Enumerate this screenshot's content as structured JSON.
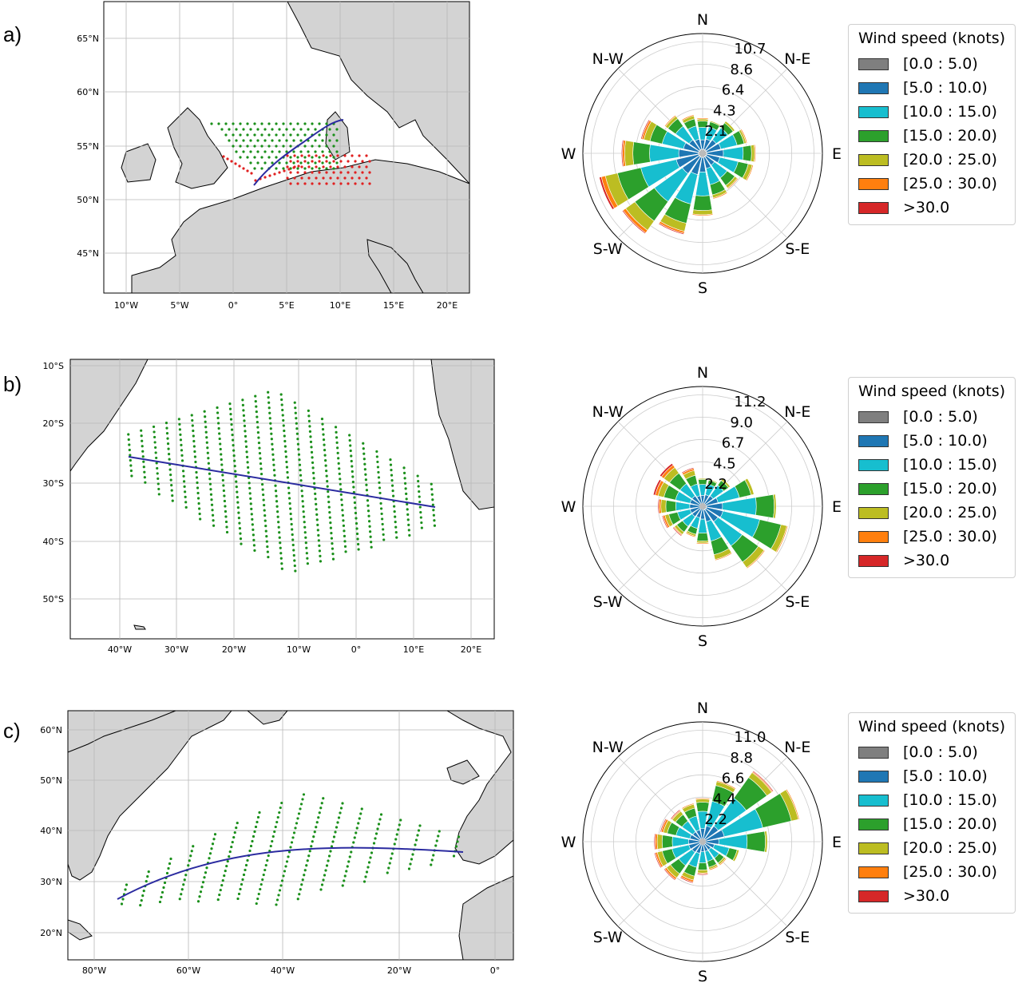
{
  "panels": [
    {
      "id": "a",
      "label": "a)",
      "map": {
        "lon_ticks": [
          "10°W",
          "5°W",
          "0°",
          "5°E",
          "10°E",
          "15°E",
          "20°E"
        ],
        "lat_ticks": [
          "65°N",
          "60°N",
          "55°N",
          "50°N",
          "45°N"
        ]
      },
      "rose": {
        "directions": [
          "N",
          "N-E",
          "E",
          "S-E",
          "S",
          "S-W",
          "W",
          "N-W"
        ],
        "radial_labels": [
          "2.1",
          "4.3",
          "6.4",
          "8.6",
          "10.7"
        ]
      },
      "legend": {
        "title": "Wind speed (knots)",
        "bins": [
          "[0.0 : 5.0)",
          "[5.0 : 10.0)",
          "[10.0 : 15.0)",
          "[15.0 : 20.0)",
          "[20.0 : 25.0)",
          "[25.0 : 30.0)",
          ">30.0"
        ]
      }
    },
    {
      "id": "b",
      "label": "b)",
      "map": {
        "lon_ticks": [
          "40°W",
          "30°W",
          "20°W",
          "10°W",
          "0°",
          "10°E",
          "20°E"
        ],
        "lat_ticks": [
          "10°S",
          "20°S",
          "30°S",
          "40°S",
          "50°S"
        ]
      },
      "rose": {
        "directions": [
          "N",
          "N-E",
          "E",
          "S-E",
          "S",
          "S-W",
          "W",
          "N-W"
        ],
        "radial_labels": [
          "2.2",
          "4.5",
          "6.7",
          "9.0",
          "11.2"
        ]
      },
      "legend": {
        "title": "Wind speed (knots)",
        "bins": [
          "[0.0 : 5.0)",
          "[5.0 : 10.0)",
          "[10.0 : 15.0)",
          "[15.0 : 20.0)",
          "[20.0 : 25.0)",
          "[25.0 : 30.0)",
          ">30.0"
        ]
      }
    },
    {
      "id": "c",
      "label": "c)",
      "map": {
        "lon_ticks": [
          "80°W",
          "60°W",
          "40°W",
          "20°W",
          "0°"
        ],
        "lat_ticks": [
          "60°N",
          "50°N",
          "40°N",
          "30°N",
          "20°N"
        ]
      },
      "rose": {
        "directions": [
          "N",
          "N-E",
          "E",
          "S-E",
          "S",
          "S-W",
          "W",
          "N-W"
        ],
        "radial_labels": [
          "2.2",
          "4.4",
          "6.6",
          "8.8",
          "11.0"
        ]
      },
      "legend": {
        "title": "Wind speed (knots)",
        "bins": [
          "[0.0 : 5.0)",
          "[5.0 : 10.0)",
          "[10.0 : 15.0)",
          "[15.0 : 20.0)",
          "[20.0 : 25.0)",
          "[25.0 : 30.0)",
          ">30.0"
        ]
      }
    }
  ],
  "colors": {
    "bins": [
      "#7f7f7f",
      "#1f77b4",
      "#17becf",
      "#2ca02c",
      "#bcbd22",
      "#ff7f0e",
      "#d62728"
    ],
    "land": "#d3d3d3",
    "route": "#2b2ba0",
    "points_green": "#1a8f1a",
    "points_red": "#e02020"
  },
  "chart_data": [
    {
      "type": "bar",
      "title": "",
      "panel": "a",
      "note_type": "polar stacked bar (wind rose)",
      "categories": [
        "N",
        "NNE",
        "NE",
        "ENE",
        "E",
        "ESE",
        "SE",
        "SSE",
        "S",
        "SSW",
        "SW",
        "WSW",
        "W",
        "WNW",
        "NW",
        "NNW"
      ],
      "rmax": 10.7,
      "series": [
        {
          "name": "[0.0 : 5.0)",
          "values": [
            0.4,
            0.4,
            0.4,
            0.4,
            0.4,
            0.4,
            0.4,
            0.4,
            0.4,
            0.4,
            0.4,
            0.4,
            0.4,
            0.4,
            0.4,
            0.4
          ]
        },
        {
          "name": "[5.0 : 10.0)",
          "values": [
            0.9,
            1.0,
            1.2,
            1.4,
            1.6,
            1.3,
            1.0,
            1.1,
            1.4,
            1.7,
            2.0,
            2.2,
            1.9,
            1.5,
            1.2,
            1.0
          ]
        },
        {
          "name": "[10.0 : 15.0)",
          "values": [
            1.2,
            1.2,
            1.4,
            1.6,
            1.9,
            1.8,
            1.5,
            1.6,
            2.3,
            2.9,
            3.3,
            3.5,
            2.8,
            2.1,
            1.6,
            1.3
          ]
        },
        {
          "name": "[15.0 : 20.0)",
          "values": [
            0.6,
            0.5,
            0.6,
            0.7,
            0.8,
            1.0,
            0.9,
            1.0,
            1.4,
            1.9,
            2.3,
            2.3,
            1.6,
            1.2,
            0.9,
            0.7
          ]
        },
        {
          "name": "[20.0 : 25.0)",
          "values": [
            0.2,
            0.1,
            0.2,
            0.2,
            0.3,
            0.4,
            0.3,
            0.3,
            0.4,
            0.8,
            1.1,
            1.2,
            0.8,
            0.6,
            0.3,
            0.3
          ]
        },
        {
          "name": "[25.0 : 30.0)",
          "values": [
            0.1,
            0.0,
            0.0,
            0.1,
            0.1,
            0.1,
            0.1,
            0.1,
            0.1,
            0.2,
            0.3,
            0.4,
            0.2,
            0.2,
            0.1,
            0.1
          ]
        },
        {
          "name": ">30.0",
          "values": [
            0.0,
            0.0,
            0.0,
            0.0,
            0.0,
            0.0,
            0.0,
            0.0,
            0.0,
            0.1,
            0.1,
            0.2,
            0.1,
            0.1,
            0.0,
            0.0
          ]
        }
      ]
    },
    {
      "type": "bar",
      "title": "",
      "panel": "b",
      "note_type": "polar stacked bar (wind rose)",
      "categories": [
        "N",
        "NNE",
        "NE",
        "ENE",
        "E",
        "ESE",
        "SE",
        "SSE",
        "S",
        "SSW",
        "SW",
        "WSW",
        "W",
        "WNW",
        "NW",
        "NNW"
      ],
      "rmax": 11.2,
      "series": [
        {
          "name": "[0.0 : 5.0)",
          "values": [
            0.3,
            0.3,
            0.3,
            0.3,
            0.4,
            0.4,
            0.4,
            0.4,
            0.3,
            0.3,
            0.3,
            0.3,
            0.3,
            0.3,
            0.3,
            0.3
          ]
        },
        {
          "name": "[5.0 : 10.0)",
          "values": [
            0.8,
            0.9,
            1.0,
            1.3,
            1.6,
            1.7,
            1.5,
            1.2,
            1.0,
            0.9,
            1.0,
            1.0,
            1.0,
            1.0,
            1.0,
            0.8
          ]
        },
        {
          "name": "[10.0 : 15.0)",
          "values": [
            1.1,
            1.1,
            1.3,
            2.2,
            3.4,
            3.8,
            3.0,
            2.0,
            1.4,
            1.1,
            1.2,
            1.3,
            1.4,
            1.5,
            1.5,
            1.2
          ]
        },
        {
          "name": "[15.0 : 20.0)",
          "values": [
            0.5,
            0.4,
            0.6,
            1.2,
            1.8,
            2.2,
            2.0,
            1.4,
            0.8,
            0.6,
            0.7,
            0.9,
            1.0,
            1.2,
            1.3,
            0.9
          ]
        },
        {
          "name": "[20.0 : 25.0)",
          "values": [
            0.1,
            0.1,
            0.2,
            0.3,
            0.2,
            0.6,
            0.7,
            0.5,
            0.2,
            0.2,
            0.3,
            0.4,
            0.5,
            0.6,
            0.7,
            0.5
          ]
        },
        {
          "name": "[25.0 : 30.0)",
          "values": [
            0.0,
            0.0,
            0.0,
            0.0,
            0.0,
            0.1,
            0.1,
            0.1,
            0.1,
            0.1,
            0.1,
            0.2,
            0.2,
            0.3,
            0.3,
            0.2
          ]
        },
        {
          "name": ">30.0",
          "values": [
            0.0,
            0.0,
            0.0,
            0.0,
            0.0,
            0.0,
            0.0,
            0.0,
            0.0,
            0.0,
            0.1,
            0.1,
            0.1,
            0.2,
            0.2,
            0.1
          ]
        }
      ]
    },
    {
      "type": "bar",
      "title": "",
      "panel": "c",
      "note_type": "polar stacked bar (wind rose)",
      "categories": [
        "N",
        "NNE",
        "NE",
        "ENE",
        "E",
        "ESE",
        "SE",
        "SSE",
        "S",
        "SSW",
        "SW",
        "WSW",
        "W",
        "WNW",
        "NW",
        "NNW"
      ],
      "rmax": 11.0,
      "series": [
        {
          "name": "[0.0 : 5.0)",
          "values": [
            0.3,
            0.3,
            0.3,
            0.3,
            0.3,
            0.3,
            0.3,
            0.3,
            0.3,
            0.3,
            0.3,
            0.3,
            0.3,
            0.3,
            0.3,
            0.3
          ]
        },
        {
          "name": "[5.0 : 10.0)",
          "values": [
            1.0,
            1.3,
            1.6,
            1.9,
            1.3,
            0.9,
            0.7,
            0.7,
            0.7,
            0.9,
            1.0,
            1.1,
            1.1,
            1.0,
            0.9,
            0.9
          ]
        },
        {
          "name": "[10.0 : 15.0)",
          "values": [
            1.7,
            2.5,
            3.4,
            3.9,
            2.8,
            1.5,
            1.0,
            1.0,
            1.1,
            1.4,
            1.6,
            1.7,
            1.6,
            1.4,
            1.3,
            1.4
          ]
        },
        {
          "name": "[15.0 : 20.0)",
          "values": [
            0.9,
            1.6,
            2.5,
            2.9,
            1.8,
            0.8,
            0.6,
            0.6,
            0.7,
            0.9,
            1.0,
            1.0,
            1.0,
            0.9,
            0.8,
            0.8
          ]
        },
        {
          "name": "[20.0 : 25.0)",
          "values": [
            0.3,
            0.4,
            0.6,
            0.7,
            0.2,
            0.2,
            0.2,
            0.2,
            0.3,
            0.4,
            0.5,
            0.5,
            0.5,
            0.4,
            0.4,
            0.4
          ]
        },
        {
          "name": "[25.0 : 30.0)",
          "values": [
            0.1,
            0.1,
            0.1,
            0.1,
            0.0,
            0.0,
            0.1,
            0.1,
            0.1,
            0.2,
            0.2,
            0.2,
            0.2,
            0.2,
            0.1,
            0.1
          ]
        },
        {
          "name": ">30.0",
          "values": [
            0.0,
            0.0,
            0.1,
            0.0,
            0.0,
            0.0,
            0.0,
            0.0,
            0.1,
            0.1,
            0.1,
            0.1,
            0.1,
            0.1,
            0.1,
            0.0
          ]
        }
      ]
    }
  ]
}
